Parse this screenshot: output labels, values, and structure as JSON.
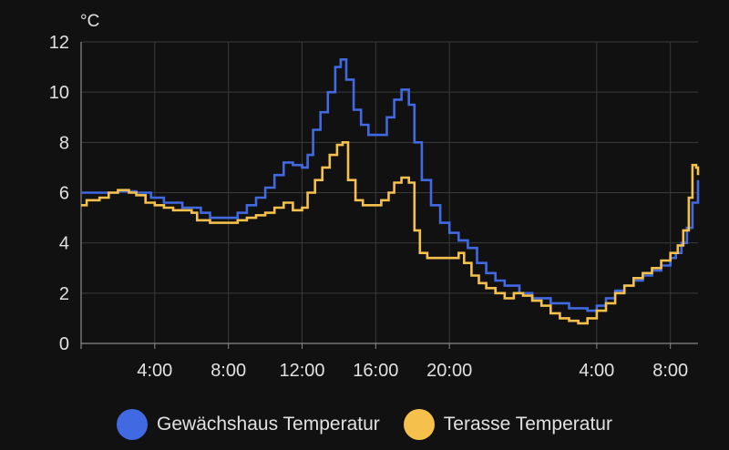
{
  "chart_data": {
    "type": "line",
    "step": true,
    "unit": "°C",
    "ylim": [
      0,
      12
    ],
    "yticks": [
      0,
      2,
      4,
      6,
      8,
      10,
      12
    ],
    "xlim": [
      0.0,
      33.5
    ],
    "xticks": [
      {
        "x": 4,
        "label": "4:00"
      },
      {
        "x": 8,
        "label": "8:00"
      },
      {
        "x": 12,
        "label": "12:00"
      },
      {
        "x": 16,
        "label": "16:00"
      },
      {
        "x": 20,
        "label": "20:00"
      },
      {
        "x": 28,
        "label": "4:00"
      },
      {
        "x": 32,
        "label": "8:00"
      }
    ],
    "grid": true,
    "legend_position": "bottom",
    "series": [
      {
        "name": "Gewächshaus Temperatur",
        "color": "#4169e1",
        "points": [
          [
            0.0,
            6.0
          ],
          [
            1.2,
            6.0
          ],
          [
            2.0,
            6.05
          ],
          [
            3.0,
            6.0
          ],
          [
            3.8,
            5.8
          ],
          [
            4.5,
            5.6
          ],
          [
            5.5,
            5.4
          ],
          [
            6.5,
            5.2
          ],
          [
            7.0,
            5.0
          ],
          [
            8.0,
            5.0
          ],
          [
            8.5,
            5.2
          ],
          [
            9.0,
            5.5
          ],
          [
            9.5,
            5.8
          ],
          [
            10.0,
            6.2
          ],
          [
            10.5,
            6.7
          ],
          [
            11.0,
            7.2
          ],
          [
            11.5,
            7.1
          ],
          [
            12.0,
            7.0
          ],
          [
            12.3,
            7.5
          ],
          [
            12.6,
            8.5
          ],
          [
            13.0,
            9.2
          ],
          [
            13.4,
            10.0
          ],
          [
            13.8,
            11.0
          ],
          [
            14.1,
            11.3
          ],
          [
            14.4,
            10.5
          ],
          [
            14.8,
            9.3
          ],
          [
            15.2,
            8.7
          ],
          [
            15.6,
            8.3
          ],
          [
            16.2,
            8.3
          ],
          [
            16.6,
            9.0
          ],
          [
            17.0,
            9.7
          ],
          [
            17.4,
            10.1
          ],
          [
            17.8,
            9.5
          ],
          [
            18.1,
            8.0
          ],
          [
            18.5,
            6.5
          ],
          [
            19.0,
            5.5
          ],
          [
            19.5,
            4.8
          ],
          [
            20.0,
            4.4
          ],
          [
            20.5,
            4.1
          ],
          [
            21.0,
            3.8
          ],
          [
            21.5,
            3.2
          ],
          [
            22.0,
            2.8
          ],
          [
            22.5,
            2.5
          ],
          [
            23.0,
            2.3
          ],
          [
            23.8,
            2.0
          ],
          [
            24.5,
            1.8
          ],
          [
            25.5,
            1.6
          ],
          [
            26.5,
            1.4
          ],
          [
            27.5,
            1.3
          ],
          [
            28.0,
            1.5
          ],
          [
            28.5,
            1.8
          ],
          [
            29.0,
            2.1
          ],
          [
            29.5,
            2.3
          ],
          [
            30.0,
            2.5
          ],
          [
            30.5,
            2.7
          ],
          [
            31.0,
            2.9
          ],
          [
            31.5,
            3.1
          ],
          [
            32.0,
            3.4
          ],
          [
            32.3,
            3.6
          ],
          [
            32.6,
            4.0
          ],
          [
            32.9,
            4.6
          ],
          [
            33.2,
            5.6
          ],
          [
            33.5,
            6.5
          ]
        ]
      },
      {
        "name": "Terasse Temperatur",
        "color": "#f5c04b",
        "points": [
          [
            0.0,
            5.5
          ],
          [
            0.3,
            5.7
          ],
          [
            1.0,
            5.8
          ],
          [
            1.5,
            6.0
          ],
          [
            2.0,
            6.1
          ],
          [
            2.6,
            6.0
          ],
          [
            3.0,
            5.9
          ],
          [
            3.5,
            5.6
          ],
          [
            4.0,
            5.5
          ],
          [
            4.5,
            5.4
          ],
          [
            5.0,
            5.3
          ],
          [
            6.0,
            5.2
          ],
          [
            6.3,
            4.9
          ],
          [
            7.0,
            4.8
          ],
          [
            8.0,
            4.8
          ],
          [
            8.5,
            4.9
          ],
          [
            9.0,
            5.0
          ],
          [
            9.5,
            5.1
          ],
          [
            10.0,
            5.2
          ],
          [
            10.5,
            5.4
          ],
          [
            11.0,
            5.6
          ],
          [
            11.5,
            5.3
          ],
          [
            12.0,
            5.4
          ],
          [
            12.3,
            6.0
          ],
          [
            12.7,
            6.5
          ],
          [
            13.1,
            7.0
          ],
          [
            13.5,
            7.5
          ],
          [
            13.9,
            7.9
          ],
          [
            14.2,
            8.0
          ],
          [
            14.5,
            6.5
          ],
          [
            14.9,
            5.7
          ],
          [
            15.3,
            5.5
          ],
          [
            16.0,
            5.5
          ],
          [
            16.3,
            5.7
          ],
          [
            16.7,
            6.0
          ],
          [
            17.0,
            6.4
          ],
          [
            17.4,
            6.6
          ],
          [
            17.8,
            6.4
          ],
          [
            18.1,
            4.5
          ],
          [
            18.4,
            3.6
          ],
          [
            18.8,
            3.4
          ],
          [
            20.0,
            3.4
          ],
          [
            20.5,
            3.6
          ],
          [
            20.8,
            3.2
          ],
          [
            21.2,
            2.7
          ],
          [
            21.6,
            2.4
          ],
          [
            22.0,
            2.2
          ],
          [
            22.5,
            2.0
          ],
          [
            23.0,
            1.8
          ],
          [
            23.5,
            2.0
          ],
          [
            24.0,
            1.9
          ],
          [
            24.5,
            1.7
          ],
          [
            25.0,
            1.5
          ],
          [
            25.5,
            1.2
          ],
          [
            26.0,
            1.0
          ],
          [
            26.5,
            0.9
          ],
          [
            27.0,
            0.8
          ],
          [
            27.5,
            1.0
          ],
          [
            28.0,
            1.3
          ],
          [
            28.5,
            1.6
          ],
          [
            29.0,
            2.0
          ],
          [
            29.5,
            2.3
          ],
          [
            30.0,
            2.6
          ],
          [
            30.5,
            2.8
          ],
          [
            31.0,
            3.0
          ],
          [
            31.5,
            3.3
          ],
          [
            32.0,
            3.6
          ],
          [
            32.4,
            3.9
          ],
          [
            32.7,
            4.5
          ],
          [
            33.0,
            5.8
          ],
          [
            33.2,
            7.1
          ],
          [
            33.4,
            7.0
          ],
          [
            33.5,
            6.7
          ]
        ]
      }
    ]
  }
}
